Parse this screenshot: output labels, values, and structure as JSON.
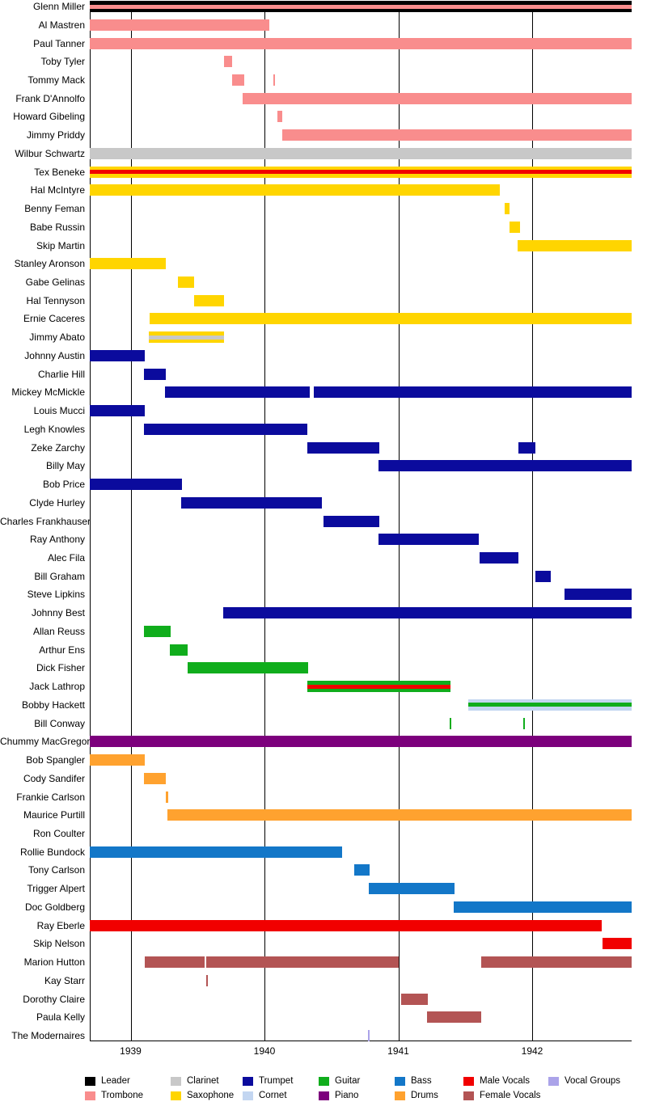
{
  "chart_data": {
    "type": "bar",
    "subtype": "gantt-timeline",
    "title": "",
    "xlabel": "",
    "ylabel": "",
    "x_axis": {
      "range": [
        1938.695,
        1942.743
      ],
      "ticks": [
        "1939",
        "1940",
        "1941",
        "1942"
      ],
      "tick_values": [
        1939,
        1940,
        1941,
        1942
      ],
      "grid": true
    },
    "legend_position": "bottom",
    "roles": {
      "leader": {
        "label": "Leader",
        "color": "#000000"
      },
      "trombone": {
        "label": "Trombone",
        "color": "#F98D8D"
      },
      "clarinet": {
        "label": "Clarinet",
        "color": "#C8C8C8"
      },
      "saxophone": {
        "label": "Saxophone",
        "color": "#FFD500"
      },
      "trumpet": {
        "label": "Trumpet",
        "color": "#0B0B9D"
      },
      "cornet": {
        "label": "Cornet",
        "color": "#C3D6F1"
      },
      "guitar": {
        "label": "Guitar",
        "color": "#10AD1C"
      },
      "piano": {
        "label": "Piano",
        "color": "#7C007C"
      },
      "bass": {
        "label": "Bass",
        "color": "#1377C8"
      },
      "drums": {
        "label": "Drums",
        "color": "#FFA22F"
      },
      "male_vocals": {
        "label": "Male Vocals",
        "color": "#F10000"
      },
      "female_vocals": {
        "label": "Female Vocals",
        "color": "#B35454"
      },
      "vocal_groups": {
        "label": "Vocal Groups",
        "color": "#ABA3E9"
      }
    },
    "legend": {
      "row1": [
        "leader",
        "clarinet",
        "trumpet",
        "guitar",
        "bass",
        "male_vocals",
        "vocal_groups"
      ],
      "row2": [
        "trombone",
        "saxophone",
        "cornet",
        "piano",
        "drums",
        "female_vocals"
      ]
    },
    "members": [
      {
        "name": "Glenn Miller",
        "bars": [
          {
            "start": 1938.695,
            "end": 1942.743,
            "roles": [
              "leader",
              "trombone"
            ]
          }
        ]
      },
      {
        "name": "Al Mastren",
        "bars": [
          {
            "start": 1938.695,
            "end": 1940.036,
            "roles": [
              "trombone"
            ]
          }
        ]
      },
      {
        "name": "Paul Tanner",
        "bars": [
          {
            "start": 1938.695,
            "end": 1942.743,
            "roles": [
              "trombone"
            ]
          }
        ]
      },
      {
        "name": "Toby Tyler",
        "bars": [
          {
            "start": 1939.698,
            "end": 1939.758,
            "roles": [
              "trombone"
            ]
          }
        ]
      },
      {
        "name": "Tommy Mack",
        "bars": [
          {
            "start": 1939.758,
            "end": 1939.849,
            "roles": [
              "trombone"
            ]
          },
          {
            "start": 1940.067,
            "end": 1940.079,
            "roles": [
              "trombone"
            ]
          }
        ]
      },
      {
        "name": "Frank D'Annolfo",
        "bars": [
          {
            "start": 1939.837,
            "end": 1942.743,
            "roles": [
              "trombone"
            ]
          }
        ]
      },
      {
        "name": "Howard Gibeling",
        "bars": [
          {
            "start": 1940.097,
            "end": 1940.133,
            "roles": [
              "trombone"
            ]
          }
        ]
      },
      {
        "name": "Jimmy Priddy",
        "bars": [
          {
            "start": 1940.133,
            "end": 1942.743,
            "roles": [
              "trombone"
            ]
          }
        ]
      },
      {
        "name": "Wilbur Schwartz",
        "bars": [
          {
            "start": 1938.695,
            "end": 1942.743,
            "roles": [
              "clarinet"
            ]
          }
        ]
      },
      {
        "name": "Tex Beneke",
        "bars": [
          {
            "start": 1938.695,
            "end": 1942.743,
            "roles": [
              "saxophone",
              "male_vocals"
            ]
          }
        ]
      },
      {
        "name": "Hal McIntyre",
        "bars": [
          {
            "start": 1938.695,
            "end": 1941.758,
            "roles": [
              "saxophone"
            ]
          }
        ]
      },
      {
        "name": "Benny Feman",
        "bars": [
          {
            "start": 1941.794,
            "end": 1941.831,
            "roles": [
              "saxophone"
            ]
          }
        ]
      },
      {
        "name": "Babe Russin",
        "bars": [
          {
            "start": 1941.831,
            "end": 1941.909,
            "roles": [
              "saxophone"
            ]
          }
        ]
      },
      {
        "name": "Skip Martin",
        "bars": [
          {
            "start": 1941.891,
            "end": 1942.743,
            "roles": [
              "saxophone"
            ]
          }
        ]
      },
      {
        "name": "Stanley Aronson",
        "bars": [
          {
            "start": 1938.695,
            "end": 1939.263,
            "roles": [
              "saxophone"
            ]
          }
        ]
      },
      {
        "name": "Gabe Gelinas",
        "bars": [
          {
            "start": 1939.354,
            "end": 1939.474,
            "roles": [
              "saxophone"
            ]
          }
        ]
      },
      {
        "name": "Hal Tennyson",
        "bars": [
          {
            "start": 1939.474,
            "end": 1939.698,
            "roles": [
              "saxophone"
            ]
          }
        ]
      },
      {
        "name": "Ernie Caceres",
        "bars": [
          {
            "start": 1939.142,
            "end": 1942.743,
            "roles": [
              "saxophone"
            ]
          }
        ]
      },
      {
        "name": "Jimmy Abato",
        "bars": [
          {
            "start": 1939.136,
            "end": 1939.698,
            "roles": [
              "saxophone",
              "clarinet"
            ]
          }
        ]
      },
      {
        "name": "Johnny Austin",
        "bars": [
          {
            "start": 1938.695,
            "end": 1939.106,
            "roles": [
              "trumpet"
            ]
          }
        ]
      },
      {
        "name": "Charlie Hill",
        "bars": [
          {
            "start": 1939.1,
            "end": 1939.263,
            "roles": [
              "trumpet"
            ]
          }
        ]
      },
      {
        "name": "Mickey McMickle",
        "bars": [
          {
            "start": 1939.257,
            "end": 1940.338,
            "roles": [
              "trumpet"
            ]
          },
          {
            "start": 1940.369,
            "end": 1942.743,
            "roles": [
              "trumpet"
            ]
          }
        ]
      },
      {
        "name": "Louis Mucci",
        "bars": [
          {
            "start": 1938.695,
            "end": 1939.106,
            "roles": [
              "trumpet"
            ]
          }
        ]
      },
      {
        "name": "Legh Knowles",
        "bars": [
          {
            "start": 1939.1,
            "end": 1940.32,
            "roles": [
              "trumpet"
            ]
          }
        ]
      },
      {
        "name": "Zeke Zarchy",
        "bars": [
          {
            "start": 1940.32,
            "end": 1940.858,
            "roles": [
              "trumpet"
            ]
          },
          {
            "start": 1941.897,
            "end": 1942.024,
            "roles": [
              "trumpet"
            ]
          }
        ]
      },
      {
        "name": "Billy May",
        "bars": [
          {
            "start": 1940.852,
            "end": 1942.743,
            "roles": [
              "trumpet"
            ]
          }
        ]
      },
      {
        "name": "Bob Price",
        "bars": [
          {
            "start": 1938.695,
            "end": 1939.384,
            "roles": [
              "trumpet"
            ]
          }
        ]
      },
      {
        "name": "Clyde Hurley",
        "bars": [
          {
            "start": 1939.378,
            "end": 1940.429,
            "roles": [
              "trumpet"
            ]
          }
        ]
      },
      {
        "name": "Charles Frankhauser",
        "bars": [
          {
            "start": 1940.441,
            "end": 1940.858,
            "roles": [
              "trumpet"
            ]
          }
        ]
      },
      {
        "name": "Ray Anthony",
        "bars": [
          {
            "start": 1940.852,
            "end": 1941.601,
            "roles": [
              "trumpet"
            ]
          }
        ]
      },
      {
        "name": "Alec Fila",
        "bars": [
          {
            "start": 1941.607,
            "end": 1941.897,
            "roles": [
              "trumpet"
            ]
          }
        ]
      },
      {
        "name": "Bill Graham",
        "bars": [
          {
            "start": 1942.024,
            "end": 1942.139,
            "roles": [
              "trumpet"
            ]
          }
        ]
      },
      {
        "name": "Steve Lipkins",
        "bars": [
          {
            "start": 1942.242,
            "end": 1942.743,
            "roles": [
              "trumpet"
            ]
          }
        ]
      },
      {
        "name": "Johnny Best",
        "bars": [
          {
            "start": 1939.692,
            "end": 1942.743,
            "roles": [
              "trumpet"
            ]
          }
        ]
      },
      {
        "name": "Allan Reuss",
        "bars": [
          {
            "start": 1939.1,
            "end": 1939.299,
            "roles": [
              "guitar"
            ]
          }
        ]
      },
      {
        "name": "Arthur Ens",
        "bars": [
          {
            "start": 1939.293,
            "end": 1939.426,
            "roles": [
              "guitar"
            ]
          }
        ]
      },
      {
        "name": "Dick Fisher",
        "bars": [
          {
            "start": 1939.426,
            "end": 1940.326,
            "roles": [
              "guitar"
            ]
          }
        ]
      },
      {
        "name": "Jack Lathrop",
        "bars": [
          {
            "start": 1940.32,
            "end": 1941.39,
            "roles": [
              "guitar",
              "male_vocals"
            ]
          }
        ]
      },
      {
        "name": "Bobby Hackett",
        "bars": [
          {
            "start": 1941.523,
            "end": 1942.743,
            "roles": [
              "cornet",
              "guitar"
            ]
          }
        ]
      },
      {
        "name": "Bill Conway",
        "bars": [
          {
            "start": 1941.384,
            "end": 1941.396,
            "roles": [
              "guitar"
            ]
          },
          {
            "start": 1941.933,
            "end": 1941.945,
            "roles": [
              "guitar"
            ]
          }
        ]
      },
      {
        "name": "Chummy MacGregor",
        "bars": [
          {
            "start": 1938.695,
            "end": 1942.743,
            "roles": [
              "piano"
            ]
          }
        ]
      },
      {
        "name": "Bob Spangler",
        "bars": [
          {
            "start": 1938.695,
            "end": 1939.106,
            "roles": [
              "drums"
            ]
          }
        ]
      },
      {
        "name": "Cody Sandifer",
        "bars": [
          {
            "start": 1939.1,
            "end": 1939.263,
            "roles": [
              "drums"
            ]
          }
        ]
      },
      {
        "name": "Frankie Carlson",
        "bars": [
          {
            "start": 1939.263,
            "end": 1939.281,
            "roles": [
              "drums"
            ]
          }
        ]
      },
      {
        "name": "Maurice Purtill",
        "bars": [
          {
            "start": 1939.275,
            "end": 1942.743,
            "roles": [
              "drums"
            ]
          }
        ]
      },
      {
        "name": "Ron Coulter",
        "bars": []
      },
      {
        "name": "Rollie Bundock",
        "bars": [
          {
            "start": 1938.695,
            "end": 1940.58,
            "roles": [
              "bass"
            ]
          }
        ]
      },
      {
        "name": "Tony Carlson",
        "bars": [
          {
            "start": 1940.67,
            "end": 1940.785,
            "roles": [
              "bass"
            ]
          }
        ]
      },
      {
        "name": "Trigger Alpert",
        "bars": [
          {
            "start": 1940.779,
            "end": 1941.42,
            "roles": [
              "bass"
            ]
          }
        ]
      },
      {
        "name": "Doc Goldberg",
        "bars": [
          {
            "start": 1941.414,
            "end": 1942.743,
            "roles": [
              "bass"
            ]
          }
        ]
      },
      {
        "name": "Ray Eberle",
        "bars": [
          {
            "start": 1938.695,
            "end": 1942.52,
            "roles": [
              "male_vocals"
            ]
          }
        ]
      },
      {
        "name": "Skip Nelson",
        "bars": [
          {
            "start": 1942.526,
            "end": 1942.743,
            "roles": [
              "male_vocals"
            ]
          }
        ]
      },
      {
        "name": "Marion Hutton",
        "bars": [
          {
            "start": 1939.106,
            "end": 1939.553,
            "roles": [
              "female_vocals"
            ]
          },
          {
            "start": 1939.565,
            "end": 1941.003,
            "roles": [
              "female_vocals"
            ]
          },
          {
            "start": 1941.619,
            "end": 1942.743,
            "roles": [
              "female_vocals"
            ]
          }
        ]
      },
      {
        "name": "Kay Starr",
        "bars": [
          {
            "start": 1939.565,
            "end": 1939.577,
            "roles": [
              "female_vocals"
            ]
          }
        ]
      },
      {
        "name": "Dorothy Claire",
        "bars": [
          {
            "start": 1941.021,
            "end": 1941.221,
            "roles": [
              "female_vocals"
            ]
          }
        ]
      },
      {
        "name": "Paula Kelly",
        "bars": [
          {
            "start": 1941.215,
            "end": 1941.619,
            "roles": [
              "female_vocals"
            ]
          }
        ]
      },
      {
        "name": "The Modernaires",
        "bars": [
          {
            "start": 1940.773,
            "end": 1940.785,
            "roles": [
              "vocal_groups"
            ]
          }
        ]
      }
    ]
  }
}
